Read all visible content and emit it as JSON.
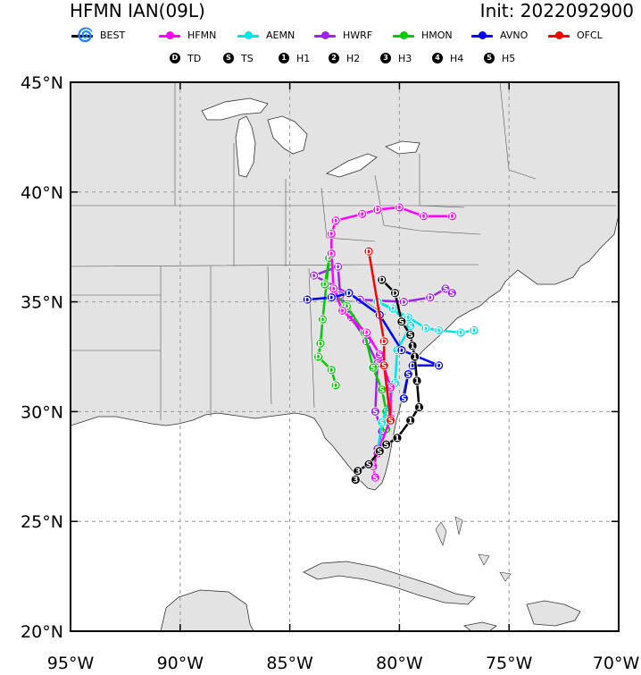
{
  "header": {
    "title": "HFMN IAN(09L)",
    "init": "Init: 2022092900"
  },
  "legend": {
    "items": [
      {
        "label": "BEST",
        "color": "#000000",
        "icon": "hurricane-icon"
      },
      {
        "label": "HFMN",
        "color": "#ff00ff"
      },
      {
        "label": "AEMN",
        "color": "#00e5e5"
      },
      {
        "label": "HWRF",
        "color": "#a020f0"
      },
      {
        "label": "HMON",
        "color": "#00cc00"
      },
      {
        "label": "AVNO",
        "color": "#0000ff"
      },
      {
        "label": "OFCL",
        "color": "#ff0000"
      }
    ],
    "symbols": [
      {
        "glyph": "D",
        "label": "TD"
      },
      {
        "glyph": "S",
        "label": "TS"
      },
      {
        "glyph": "1",
        "label": "H1"
      },
      {
        "glyph": "2",
        "label": "H2"
      },
      {
        "glyph": "3",
        "label": "H3"
      },
      {
        "glyph": "4",
        "label": "H4"
      },
      {
        "glyph": "5",
        "label": "H5"
      }
    ]
  },
  "chart_data": {
    "type": "map",
    "x_range": [
      -95,
      -70
    ],
    "y_range": [
      20,
      45
    ],
    "x_ticks": [
      {
        "value": -95,
        "label": "95°W"
      },
      {
        "value": -90,
        "label": "90°W"
      },
      {
        "value": -85,
        "label": "85°W"
      },
      {
        "value": -80,
        "label": "80°W"
      },
      {
        "value": -75,
        "label": "75°W"
      },
      {
        "value": -70,
        "label": "70°W"
      }
    ],
    "y_ticks": [
      {
        "value": 20,
        "label": "20°N"
      },
      {
        "value": 25,
        "label": "25°N"
      },
      {
        "value": 30,
        "label": "30°N"
      },
      {
        "value": 35,
        "label": "35°N"
      },
      {
        "value": 40,
        "label": "40°N"
      },
      {
        "value": 45,
        "label": "45°N"
      }
    ],
    "grid": true,
    "colors": {
      "land": "#e3e3e3",
      "ocean": "#ffffff",
      "grid": "#999999",
      "border": "#555555"
    },
    "tracks": [
      {
        "name": "BEST",
        "color": "#000000",
        "points": [
          {
            "lon": -82.0,
            "lat": 26.9,
            "s": "3"
          },
          {
            "lon": -81.9,
            "lat": 27.3,
            "s": "3"
          },
          {
            "lon": -81.4,
            "lat": 27.6,
            "s": "S"
          },
          {
            "lon": -80.9,
            "lat": 28.2,
            "s": "S"
          },
          {
            "lon": -80.6,
            "lat": 28.5,
            "s": "S"
          },
          {
            "lon": -80.1,
            "lat": 28.8,
            "s": "1"
          },
          {
            "lon": -79.5,
            "lat": 29.6,
            "s": "1"
          },
          {
            "lon": -79.1,
            "lat": 30.2,
            "s": "1"
          },
          {
            "lon": -79.2,
            "lat": 31.4,
            "s": "1"
          },
          {
            "lon": -79.3,
            "lat": 32.5,
            "s": "1"
          },
          {
            "lon": -79.4,
            "lat": 33.0,
            "s": "1"
          },
          {
            "lon": -79.5,
            "lat": 33.5,
            "s": "S"
          },
          {
            "lon": -79.9,
            "lat": 34.1,
            "s": "S"
          },
          {
            "lon": -80.2,
            "lat": 35.4,
            "s": "D"
          },
          {
            "lon": -80.8,
            "lat": 36.0,
            "s": "D"
          }
        ]
      },
      {
        "name": "HFMN",
        "color": "#ff00ff",
        "points": [
          {
            "lon": -81.1,
            "lat": 27.0,
            "s": "S"
          },
          {
            "lon": -81.2,
            "lat": 27.5,
            "s": "S"
          },
          {
            "lon": -81.0,
            "lat": 28.1,
            "s": "S"
          },
          {
            "lon": -80.4,
            "lat": 29.7,
            "s": "S"
          },
          {
            "lon": -80.4,
            "lat": 31.1,
            "s": "S"
          },
          {
            "lon": -80.9,
            "lat": 32.6,
            "s": "S"
          },
          {
            "lon": -81.5,
            "lat": 33.6,
            "s": "D"
          },
          {
            "lon": -82.6,
            "lat": 34.6,
            "s": "D"
          },
          {
            "lon": -83.0,
            "lat": 35.6,
            "s": "D"
          },
          {
            "lon": -83.1,
            "lat": 37.2,
            "s": "D"
          },
          {
            "lon": -83.1,
            "lat": 38.1,
            "s": "D"
          },
          {
            "lon": -82.9,
            "lat": 38.7,
            "s": "D"
          },
          {
            "lon": -81.7,
            "lat": 39.0,
            "s": "D"
          },
          {
            "lon": -81.0,
            "lat": 39.2,
            "s": "D"
          },
          {
            "lon": -80.0,
            "lat": 39.3,
            "s": "D"
          },
          {
            "lon": -78.9,
            "lat": 38.9,
            "s": "D"
          },
          {
            "lon": -77.6,
            "lat": 38.9,
            "s": "D"
          }
        ]
      },
      {
        "name": "AEMN",
        "color": "#00e5e5",
        "points": [
          {
            "lon": -81.0,
            "lat": 28.1,
            "s": "S"
          },
          {
            "lon": -80.8,
            "lat": 29.5,
            "s": "S"
          },
          {
            "lon": -80.2,
            "lat": 31.3,
            "s": "S"
          },
          {
            "lon": -80.1,
            "lat": 32.8,
            "s": "S"
          },
          {
            "lon": -79.5,
            "lat": 33.9,
            "s": "S"
          },
          {
            "lon": -80.3,
            "lat": 34.7,
            "s": "D"
          },
          {
            "lon": -81.0,
            "lat": 35.0,
            "s": "D"
          },
          {
            "lon": -79.6,
            "lat": 34.3,
            "s": "D"
          },
          {
            "lon": -78.8,
            "lat": 33.8,
            "s": "D"
          },
          {
            "lon": -78.2,
            "lat": 33.7,
            "s": "D"
          },
          {
            "lon": -77.2,
            "lat": 33.6,
            "s": "D"
          },
          {
            "lon": -76.6,
            "lat": 33.7,
            "s": "D"
          }
        ]
      },
      {
        "name": "HWRF",
        "color": "#a020f0",
        "points": [
          {
            "lon": -81.0,
            "lat": 28.3,
            "s": "S"
          },
          {
            "lon": -80.8,
            "lat": 29.1,
            "s": "S"
          },
          {
            "lon": -81.1,
            "lat": 30.0,
            "s": "S"
          },
          {
            "lon": -81.0,
            "lat": 32.2,
            "s": "S"
          },
          {
            "lon": -81.5,
            "lat": 33.2,
            "s": "D"
          },
          {
            "lon": -82.2,
            "lat": 34.3,
            "s": "D"
          },
          {
            "lon": -82.7,
            "lat": 35.3,
            "s": "D"
          },
          {
            "lon": -82.8,
            "lat": 36.6,
            "s": "D"
          },
          {
            "lon": -83.9,
            "lat": 36.2,
            "s": "D"
          },
          {
            "lon": -81.8,
            "lat": 35.1,
            "s": "D"
          },
          {
            "lon": -79.8,
            "lat": 35.0,
            "s": "D"
          },
          {
            "lon": -78.6,
            "lat": 35.2,
            "s": "D"
          },
          {
            "lon": -77.9,
            "lat": 35.6,
            "s": "S"
          },
          {
            "lon": -77.6,
            "lat": 35.4,
            "s": "S"
          }
        ]
      },
      {
        "name": "HMON",
        "color": "#00cc00",
        "points": [
          {
            "lon": -80.6,
            "lat": 29.2,
            "s": "S"
          },
          {
            "lon": -80.6,
            "lat": 30.0,
            "s": "S"
          },
          {
            "lon": -80.8,
            "lat": 31.0,
            "s": "S"
          },
          {
            "lon": -81.2,
            "lat": 32.0,
            "s": "S"
          },
          {
            "lon": -81.6,
            "lat": 33.6,
            "s": "D"
          },
          {
            "lon": -82.4,
            "lat": 34.8,
            "s": "D"
          },
          {
            "lon": -83.4,
            "lat": 35.8,
            "s": "D"
          },
          {
            "lon": -83.2,
            "lat": 37.0,
            "s": "D"
          },
          {
            "lon": -83.5,
            "lat": 34.2,
            "s": "D"
          },
          {
            "lon": -83.6,
            "lat": 33.1,
            "s": "D"
          },
          {
            "lon": -83.7,
            "lat": 32.5,
            "s": "D"
          },
          {
            "lon": -83.1,
            "lat": 31.9,
            "s": "D"
          },
          {
            "lon": -82.9,
            "lat": 31.2,
            "s": "D"
          }
        ]
      },
      {
        "name": "AVNO",
        "color": "#0000ff",
        "points": [
          {
            "lon": -79.8,
            "lat": 30.6,
            "s": "S"
          },
          {
            "lon": -79.6,
            "lat": 31.7,
            "s": "S"
          },
          {
            "lon": -79.4,
            "lat": 32.1,
            "s": "D"
          },
          {
            "lon": -78.2,
            "lat": 32.1,
            "s": "D"
          },
          {
            "lon": -79.9,
            "lat": 32.8,
            "s": "D"
          },
          {
            "lon": -80.9,
            "lat": 34.4,
            "s": "D"
          },
          {
            "lon": -82.3,
            "lat": 35.4,
            "s": "D"
          },
          {
            "lon": -83.1,
            "lat": 35.2,
            "s": "D"
          },
          {
            "lon": -84.2,
            "lat": 35.1,
            "s": "D"
          }
        ]
      },
      {
        "name": "OFCL",
        "color": "#ff0000",
        "points": [
          {
            "lon": -80.4,
            "lat": 29.6,
            "s": "S"
          },
          {
            "lon": -80.7,
            "lat": 32.1,
            "s": "S"
          },
          {
            "lon": -80.7,
            "lat": 33.2,
            "s": "D"
          },
          {
            "lon": -81.4,
            "lat": 37.3,
            "s": "D"
          }
        ]
      }
    ]
  }
}
